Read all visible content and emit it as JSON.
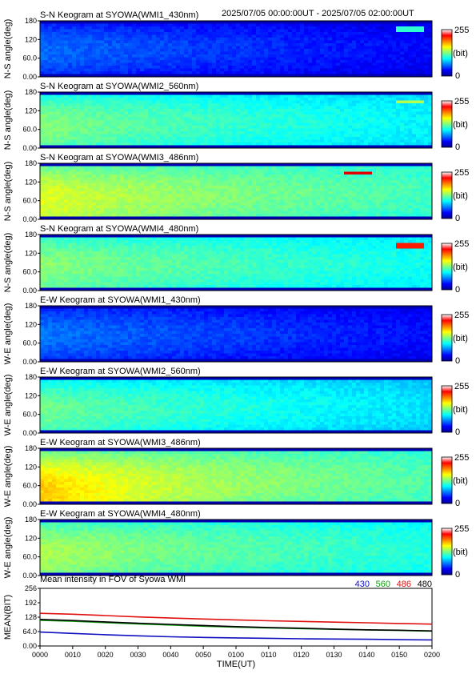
{
  "header": {
    "time_range": "2025/07/05 00:00:00UT - 2025/07/05 02:00:00UT"
  },
  "keograms": [
    {
      "title": "S-N Keogram at SYOWA(WMI1_430nm)",
      "ylabel": "N-S angle(deg)",
      "base": 0.14,
      "band": 0.02,
      "streak": {
        "t": 0.9,
        "a": 0.85,
        "level": 0.42
      }
    },
    {
      "title": "S-N Keogram at SYOWA(WMI2_560nm)",
      "ylabel": "N-S angle(deg)",
      "base": 0.38,
      "band": 0.08,
      "streak": {
        "t": 0.9,
        "a": 0.82,
        "level": 0.55
      }
    },
    {
      "title": "S-N Keogram at SYOWA(WMI3_486nm)",
      "ylabel": "N-S angle(deg)",
      "base": 0.45,
      "band": 0.12,
      "streak": {
        "t": 0.77,
        "a": 0.82,
        "level": 0.9
      }
    },
    {
      "title": "S-N Keogram at SYOWA(WMI4_480nm)",
      "ylabel": "N-S angle(deg)",
      "base": 0.4,
      "band": 0.06,
      "streak": {
        "t": 0.9,
        "a": 0.8,
        "level": 0.85
      }
    },
    {
      "title": "E-W Keogram at SYOWA(WMI1_430nm)",
      "ylabel": "W-E angle(deg)",
      "base": 0.15,
      "band": 0.02,
      "streak": null
    },
    {
      "title": "E-W Keogram at SYOWA(WMI2_560nm)",
      "ylabel": "W-E angle(deg)",
      "base": 0.36,
      "band": 0.08,
      "streak": null
    },
    {
      "title": "E-W Keogram at SYOWA(WMI3_486nm)",
      "ylabel": "W-E angle(deg)",
      "base": 0.46,
      "band": 0.22,
      "streak": null
    },
    {
      "title": "E-W Keogram at SYOWA(WMI4_480nm)",
      "ylabel": "W-E angle(deg)",
      "base": 0.42,
      "band": 0.08,
      "streak": null
    }
  ],
  "keogram_axis": {
    "yticks": [
      0,
      60,
      120,
      180
    ],
    "ytick_labels": [
      "0.00",
      "60.0",
      "120",
      "180"
    ],
    "ylim": [
      0,
      180
    ]
  },
  "colorbar": {
    "max_label": "255",
    "unit_label": "(bit)",
    "min_label": "0",
    "range": [
      0,
      255
    ]
  },
  "chart_data": {
    "type": "line",
    "title": "Mean intensity in FOV of Syowa WMI",
    "xlabel": "TIME(UT)",
    "ylabel": "MEAN(BIT)",
    "xlim": [
      0,
      120
    ],
    "ylim": [
      0,
      256
    ],
    "xticks": [
      0,
      10,
      20,
      30,
      40,
      50,
      60,
      70,
      80,
      90,
      100,
      110,
      120
    ],
    "xtick_labels": [
      "0000",
      "0010",
      "0020",
      "0030",
      "0040",
      "0050",
      "0100",
      "0110",
      "0120",
      "0130",
      "0140",
      "0150",
      "0200"
    ],
    "yticks": [
      0,
      64,
      128,
      192,
      256
    ],
    "ytick_labels": [
      "0.00",
      "64.0",
      "128",
      "192",
      "256"
    ],
    "legend": [
      {
        "label": "430",
        "color": "#1010c0"
      },
      {
        "label": "560",
        "color": "#10a010"
      },
      {
        "label": "486",
        "color": "#e01010"
      },
      {
        "label": "480",
        "color": "#000000"
      }
    ],
    "legend_placement": "top-right",
    "x": [
      0,
      10,
      20,
      30,
      40,
      50,
      60,
      70,
      80,
      90,
      100,
      110,
      120
    ],
    "series": [
      {
        "name": "430",
        "color": "#1010c0",
        "values": [
          62,
          56,
          50,
          45,
          41,
          38,
          36,
          34,
          32,
          31,
          30,
          28,
          27
        ]
      },
      {
        "name": "560",
        "color": "#10a010",
        "values": [
          114,
          110,
          104,
          98,
          93,
          88,
          84,
          80,
          77,
          74,
          71,
          69,
          66
        ]
      },
      {
        "name": "486",
        "color": "#e01010",
        "values": [
          145,
          141,
          135,
          129,
          124,
          120,
          116,
          112,
          109,
          106,
          103,
          100,
          97
        ]
      },
      {
        "name": "480",
        "color": "#000000",
        "values": [
          118,
          113,
          107,
          101,
          96,
          91,
          86,
          82,
          79,
          75,
          72,
          70,
          67
        ]
      }
    ]
  }
}
